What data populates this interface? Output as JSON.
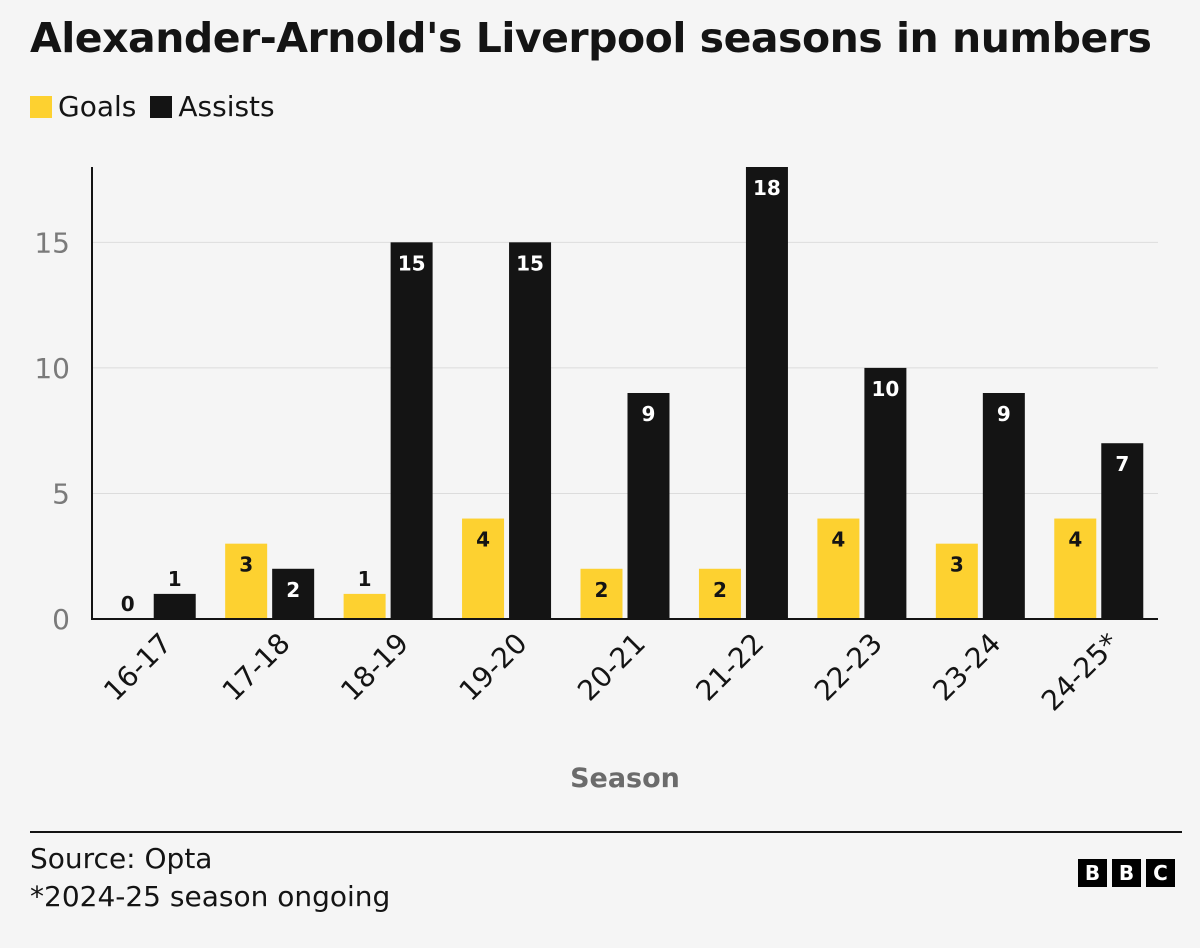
{
  "header": {
    "title": "Alexander-Arnold's Liverpool seasons in numbers"
  },
  "legend": {
    "items": [
      {
        "label": "Goals",
        "color": "#fdd130"
      },
      {
        "label": "Assists",
        "color": "#141414"
      }
    ]
  },
  "chart_data": {
    "type": "bar",
    "categories": [
      "16-17",
      "17-18",
      "18-19",
      "19-20",
      "20-21",
      "21-22",
      "22-23",
      "23-24",
      "24-25*"
    ],
    "series": [
      {
        "name": "Goals",
        "color": "#fdd130",
        "values": [
          0,
          3,
          1,
          4,
          2,
          2,
          4,
          3,
          4
        ]
      },
      {
        "name": "Assists",
        "color": "#141414",
        "values": [
          1,
          2,
          15,
          15,
          9,
          18,
          10,
          9,
          7
        ]
      }
    ],
    "title": "Alexander-Arnold's Liverpool seasons in numbers",
    "xlabel": "Season",
    "ylabel": "",
    "ylim": [
      0,
      18
    ],
    "yticks": [
      0,
      5,
      10,
      15
    ],
    "grid": true,
    "legend_position": "top-left",
    "data_labels": true
  },
  "footer": {
    "source": "Source: Opta",
    "note": "*2024-25 season ongoing",
    "logo_letters": [
      "B",
      "B",
      "C"
    ]
  }
}
